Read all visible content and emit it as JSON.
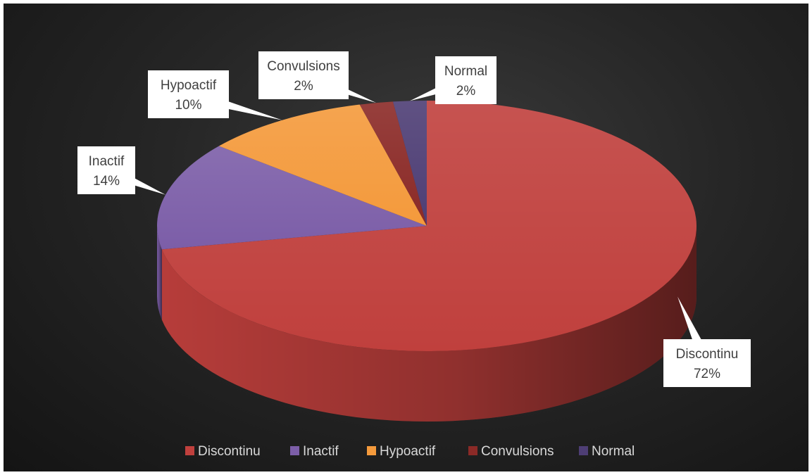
{
  "chart_data": {
    "type": "pie",
    "style": "3d",
    "categories": [
      "Discontinu",
      "Inactif",
      "Hypoactif",
      "Convulsions",
      "Normal"
    ],
    "values": [
      72,
      14,
      10,
      2,
      2
    ],
    "value_labels": [
      "72%",
      "14%",
      "10%",
      "2%",
      "2%"
    ],
    "colors": [
      "#c0403d",
      "#7c5ea8",
      "#f49a3c",
      "#8b2a27",
      "#4e3e75"
    ],
    "legend": "bottom",
    "title": ""
  }
}
